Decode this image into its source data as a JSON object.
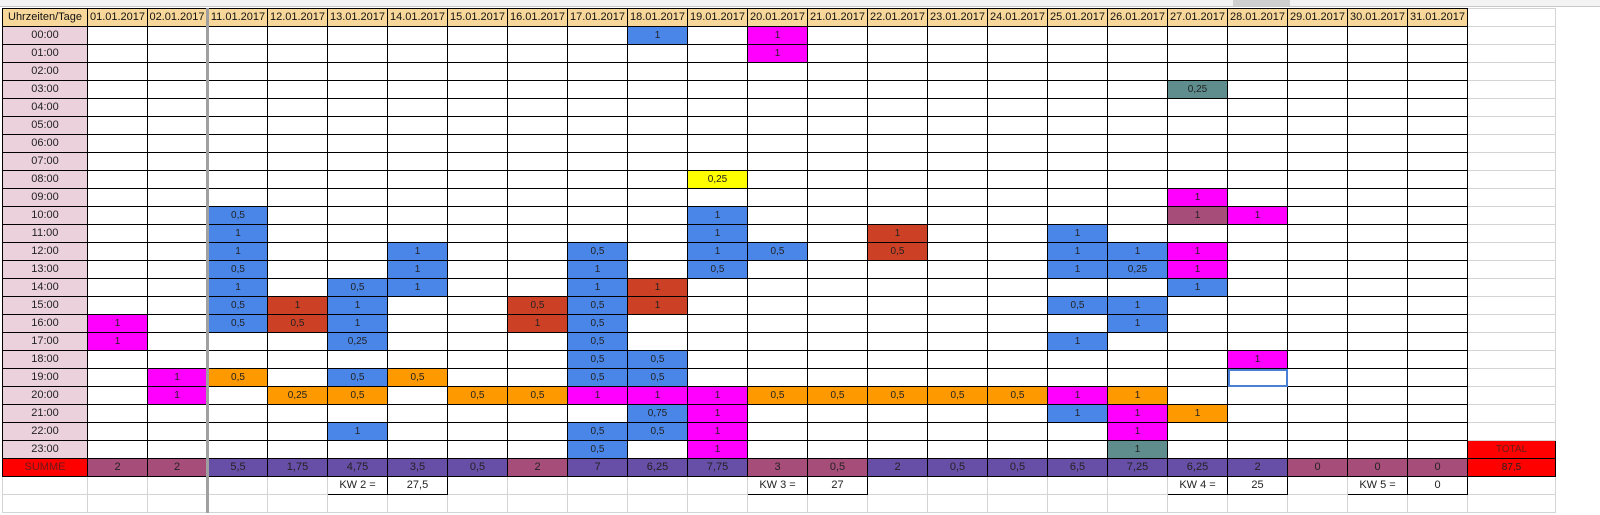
{
  "header_label": "Uhrzeiten/Tage",
  "dates": [
    "01.01.2017",
    "02.01.2017",
    "11.01.2017",
    "12.01.2017",
    "13.01.2017",
    "14.01.2017",
    "15.01.2017",
    "16.01.2017",
    "17.01.2017",
    "18.01.2017",
    "19.01.2017",
    "20.01.2017",
    "21.01.2017",
    "22.01.2017",
    "23.01.2017",
    "24.01.2017",
    "25.01.2017",
    "26.01.2017",
    "27.01.2017",
    "28.01.2017",
    "29.01.2017",
    "30.01.2017",
    "31.01.2017"
  ],
  "hours": [
    "00:00",
    "01:00",
    "02:00",
    "03:00",
    "04:00",
    "05:00",
    "06:00",
    "07:00",
    "08:00",
    "09:00",
    "10:00",
    "11:00",
    "12:00",
    "13:00",
    "14:00",
    "15:00",
    "16:00",
    "17:00",
    "18:00",
    "19:00",
    "20:00",
    "21:00",
    "22:00",
    "23:00"
  ],
  "colors": {
    "blue": "#4a86e8",
    "magenta": "#ff00ff",
    "red": "#cc4125",
    "orange": "#ff9900",
    "yellow": "#ffff00",
    "teal": "#5f8c8c",
    "mauve": "#a64d79",
    "sum_purple": "#674ea7",
    "sum_mauve": "#a64d79",
    "total_red": "#ff0000",
    "hour_pink": "#ead1dc",
    "header_orange": "#f7d79a"
  },
  "cells": [
    {
      "row": 0,
      "col": 9,
      "value": "1",
      "color": "blue"
    },
    {
      "row": 0,
      "col": 11,
      "value": "1",
      "color": "magenta"
    },
    {
      "row": 1,
      "col": 11,
      "value": "1",
      "color": "magenta"
    },
    {
      "row": 3,
      "col": 18,
      "value": "0,25",
      "color": "teal"
    },
    {
      "row": 8,
      "col": 10,
      "value": "0,25",
      "color": "yellow"
    },
    {
      "row": 9,
      "col": 18,
      "value": "1",
      "color": "magenta"
    },
    {
      "row": 10,
      "col": 2,
      "value": "0,5",
      "color": "blue"
    },
    {
      "row": 10,
      "col": 10,
      "value": "1",
      "color": "blue"
    },
    {
      "row": 10,
      "col": 18,
      "value": "1",
      "color": "mauve"
    },
    {
      "row": 10,
      "col": 19,
      "value": "1",
      "color": "magenta"
    },
    {
      "row": 11,
      "col": 2,
      "value": "1",
      "color": "blue"
    },
    {
      "row": 11,
      "col": 10,
      "value": "1",
      "color": "blue"
    },
    {
      "row": 11,
      "col": 13,
      "value": "1",
      "color": "red"
    },
    {
      "row": 11,
      "col": 16,
      "value": "1",
      "color": "blue"
    },
    {
      "row": 12,
      "col": 2,
      "value": "1",
      "color": "blue"
    },
    {
      "row": 12,
      "col": 5,
      "value": "1",
      "color": "blue"
    },
    {
      "row": 12,
      "col": 8,
      "value": "0,5",
      "color": "blue"
    },
    {
      "row": 12,
      "col": 10,
      "value": "1",
      "color": "blue"
    },
    {
      "row": 12,
      "col": 11,
      "value": "0,5",
      "color": "blue"
    },
    {
      "row": 12,
      "col": 13,
      "value": "0,5",
      "color": "red"
    },
    {
      "row": 12,
      "col": 16,
      "value": "1",
      "color": "blue"
    },
    {
      "row": 12,
      "col": 17,
      "value": "1",
      "color": "blue"
    },
    {
      "row": 12,
      "col": 18,
      "value": "1",
      "color": "magenta"
    },
    {
      "row": 13,
      "col": 2,
      "value": "0,5",
      "color": "blue"
    },
    {
      "row": 13,
      "col": 5,
      "value": "1",
      "color": "blue"
    },
    {
      "row": 13,
      "col": 8,
      "value": "1",
      "color": "blue"
    },
    {
      "row": 13,
      "col": 10,
      "value": "0,5",
      "color": "blue"
    },
    {
      "row": 13,
      "col": 16,
      "value": "1",
      "color": "blue"
    },
    {
      "row": 13,
      "col": 17,
      "value": "0,25",
      "color": "blue"
    },
    {
      "row": 13,
      "col": 18,
      "value": "1",
      "color": "magenta"
    },
    {
      "row": 14,
      "col": 2,
      "value": "1",
      "color": "blue"
    },
    {
      "row": 14,
      "col": 4,
      "value": "0,5",
      "color": "blue"
    },
    {
      "row": 14,
      "col": 5,
      "value": "1",
      "color": "blue"
    },
    {
      "row": 14,
      "col": 8,
      "value": "1",
      "color": "blue"
    },
    {
      "row": 14,
      "col": 9,
      "value": "1",
      "color": "red"
    },
    {
      "row": 14,
      "col": 18,
      "value": "1",
      "color": "blue"
    },
    {
      "row": 15,
      "col": 2,
      "value": "0,5",
      "color": "blue"
    },
    {
      "row": 15,
      "col": 3,
      "value": "1",
      "color": "red"
    },
    {
      "row": 15,
      "col": 4,
      "value": "1",
      "color": "blue"
    },
    {
      "row": 15,
      "col": 7,
      "value": "0,5",
      "color": "red"
    },
    {
      "row": 15,
      "col": 8,
      "value": "0,5",
      "color": "blue"
    },
    {
      "row": 15,
      "col": 9,
      "value": "1",
      "color": "red"
    },
    {
      "row": 15,
      "col": 16,
      "value": "0,5",
      "color": "blue"
    },
    {
      "row": 15,
      "col": 17,
      "value": "1",
      "color": "blue"
    },
    {
      "row": 16,
      "col": 0,
      "value": "1",
      "color": "magenta"
    },
    {
      "row": 16,
      "col": 2,
      "value": "0,5",
      "color": "blue"
    },
    {
      "row": 16,
      "col": 3,
      "value": "0,5",
      "color": "red"
    },
    {
      "row": 16,
      "col": 4,
      "value": "1",
      "color": "blue"
    },
    {
      "row": 16,
      "col": 7,
      "value": "1",
      "color": "red"
    },
    {
      "row": 16,
      "col": 8,
      "value": "0,5",
      "color": "blue"
    },
    {
      "row": 16,
      "col": 17,
      "value": "1",
      "color": "blue"
    },
    {
      "row": 17,
      "col": 0,
      "value": "1",
      "color": "magenta"
    },
    {
      "row": 17,
      "col": 4,
      "value": "0,25",
      "color": "blue"
    },
    {
      "row": 17,
      "col": 8,
      "value": "0,5",
      "color": "blue"
    },
    {
      "row": 17,
      "col": 16,
      "value": "1",
      "color": "blue"
    },
    {
      "row": 18,
      "col": 8,
      "value": "0,5",
      "color": "blue"
    },
    {
      "row": 18,
      "col": 9,
      "value": "0,5",
      "color": "blue"
    },
    {
      "row": 18,
      "col": 19,
      "value": "1",
      "color": "magenta"
    },
    {
      "row": 19,
      "col": 1,
      "value": "1",
      "color": "magenta"
    },
    {
      "row": 19,
      "col": 2,
      "value": "0,5",
      "color": "orange"
    },
    {
      "row": 19,
      "col": 4,
      "value": "0,5",
      "color": "blue"
    },
    {
      "row": 19,
      "col": 5,
      "value": "0,5",
      "color": "orange"
    },
    {
      "row": 19,
      "col": 8,
      "value": "0,5",
      "color": "blue"
    },
    {
      "row": 19,
      "col": 9,
      "value": "0,5",
      "color": "blue"
    },
    {
      "row": 20,
      "col": 1,
      "value": "1",
      "color": "magenta"
    },
    {
      "row": 20,
      "col": 3,
      "value": "0,25",
      "color": "orange"
    },
    {
      "row": 20,
      "col": 4,
      "value": "0,5",
      "color": "orange"
    },
    {
      "row": 20,
      "col": 6,
      "value": "0,5",
      "color": "orange"
    },
    {
      "row": 20,
      "col": 7,
      "value": "0,5",
      "color": "orange"
    },
    {
      "row": 20,
      "col": 8,
      "value": "1",
      "color": "magenta"
    },
    {
      "row": 20,
      "col": 9,
      "value": "1",
      "color": "magenta"
    },
    {
      "row": 20,
      "col": 10,
      "value": "1",
      "color": "magenta"
    },
    {
      "row": 20,
      "col": 11,
      "value": "0,5",
      "color": "orange"
    },
    {
      "row": 20,
      "col": 12,
      "value": "0,5",
      "color": "orange"
    },
    {
      "row": 20,
      "col": 13,
      "value": "0,5",
      "color": "orange"
    },
    {
      "row": 20,
      "col": 14,
      "value": "0,5",
      "color": "orange"
    },
    {
      "row": 20,
      "col": 15,
      "value": "0,5",
      "color": "orange"
    },
    {
      "row": 20,
      "col": 16,
      "value": "1",
      "color": "magenta"
    },
    {
      "row": 20,
      "col": 17,
      "value": "1",
      "color": "orange"
    },
    {
      "row": 21,
      "col": 9,
      "value": "0,75",
      "color": "blue"
    },
    {
      "row": 21,
      "col": 10,
      "value": "1",
      "color": "magenta"
    },
    {
      "row": 21,
      "col": 16,
      "value": "1",
      "color": "blue"
    },
    {
      "row": 21,
      "col": 17,
      "value": "1",
      "color": "magenta"
    },
    {
      "row": 21,
      "col": 18,
      "value": "1",
      "color": "orange"
    },
    {
      "row": 22,
      "col": 4,
      "value": "1",
      "color": "blue"
    },
    {
      "row": 22,
      "col": 8,
      "value": "0,5",
      "color": "blue"
    },
    {
      "row": 22,
      "col": 9,
      "value": "0,5",
      "color": "blue"
    },
    {
      "row": 22,
      "col": 10,
      "value": "1",
      "color": "magenta"
    },
    {
      "row": 22,
      "col": 17,
      "value": "1",
      "color": "magenta"
    },
    {
      "row": 23,
      "col": 8,
      "value": "0,5",
      "color": "blue"
    },
    {
      "row": 23,
      "col": 10,
      "value": "1",
      "color": "magenta"
    },
    {
      "row": 23,
      "col": 17,
      "value": "1",
      "color": "teal"
    }
  ],
  "summe_label": "SUMME",
  "sums": [
    {
      "value": "2",
      "color": "sum_mauve"
    },
    {
      "value": "2",
      "color": "sum_mauve"
    },
    {
      "value": "5,5",
      "color": "sum_purple"
    },
    {
      "value": "1,75",
      "color": "sum_purple"
    },
    {
      "value": "4,75",
      "color": "sum_purple"
    },
    {
      "value": "3,5",
      "color": "sum_purple"
    },
    {
      "value": "0,5",
      "color": "sum_purple"
    },
    {
      "value": "2",
      "color": "sum_mauve"
    },
    {
      "value": "7",
      "color": "sum_purple"
    },
    {
      "value": "6,25",
      "color": "sum_purple"
    },
    {
      "value": "7,75",
      "color": "sum_purple"
    },
    {
      "value": "3",
      "color": "sum_mauve"
    },
    {
      "value": "0,5",
      "color": "sum_mauve"
    },
    {
      "value": "2",
      "color": "sum_purple"
    },
    {
      "value": "0,5",
      "color": "sum_purple"
    },
    {
      "value": "0,5",
      "color": "sum_purple"
    },
    {
      "value": "6,5",
      "color": "sum_purple"
    },
    {
      "value": "7,25",
      "color": "sum_purple"
    },
    {
      "value": "6,25",
      "color": "sum_purple"
    },
    {
      "value": "2",
      "color": "sum_purple"
    },
    {
      "value": "0",
      "color": "sum_mauve"
    },
    {
      "value": "0",
      "color": "sum_mauve"
    },
    {
      "value": "0",
      "color": "sum_mauve"
    }
  ],
  "total": {
    "label": "TOTAL",
    "value": "87,5"
  },
  "weeks": [
    {
      "label": "KW 2 =",
      "value": "27,5",
      "col": 4
    },
    {
      "label": "KW 3 =",
      "value": "27",
      "col": 11
    },
    {
      "label": "KW 4 =",
      "value": "25",
      "col": 18
    },
    {
      "label": "KW 5 =",
      "value": "0",
      "col": 21
    }
  ],
  "selected_cell": {
    "row": 19,
    "col": 19
  }
}
